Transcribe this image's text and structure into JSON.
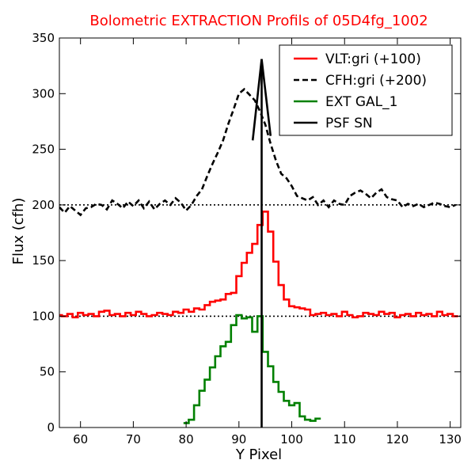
{
  "chart_data": {
    "type": "line",
    "title": "Bolometric EXTRACTION Profils of 05D4fg_1002",
    "title_color": "#ff0000",
    "xlabel": "Y Pixel",
    "ylabel": "Flux (cfh)",
    "xlim": [
      56,
      132
    ],
    "ylim": [
      0,
      350
    ],
    "xticks": [
      60,
      70,
      80,
      90,
      100,
      110,
      120,
      130
    ],
    "yticks": [
      0,
      50,
      100,
      150,
      200,
      250,
      300,
      350
    ],
    "grid": false,
    "legend_position": "top-right",
    "reference_lines": [
      100,
      200
    ],
    "series": [
      {
        "name": "VLT:gri (+100)",
        "color": "#ff0000",
        "style": "steps",
        "x": [
          56,
          57,
          58,
          59,
          60,
          61,
          62,
          63,
          64,
          65,
          66,
          67,
          68,
          69,
          70,
          71,
          72,
          73,
          74,
          75,
          76,
          77,
          78,
          79,
          80,
          81,
          82,
          83,
          84,
          85,
          86,
          87,
          88,
          89,
          90,
          91,
          92,
          93,
          94,
          95,
          96,
          97,
          98,
          99,
          100,
          101,
          102,
          103,
          104,
          105,
          106,
          107,
          108,
          109,
          110,
          111,
          112,
          113,
          114,
          115,
          116,
          117,
          118,
          119,
          120,
          121,
          122,
          123,
          124,
          125,
          126,
          127,
          128,
          129,
          130,
          131
        ],
        "values": [
          101,
          100,
          102,
          99,
          103,
          101,
          102,
          100,
          104,
          105,
          101,
          102,
          100,
          103,
          101,
          104,
          102,
          100,
          101,
          103,
          102,
          101,
          104,
          103,
          106,
          104,
          107,
          106,
          110,
          113,
          114,
          115,
          120,
          121,
          136,
          148,
          157,
          165,
          182,
          194,
          176,
          149,
          128,
          115,
          109,
          108,
          107,
          106,
          101,
          102,
          103,
          101,
          102,
          100,
          104,
          101,
          99,
          100,
          103,
          102,
          101,
          104,
          102,
          103,
          99,
          101,
          102,
          100,
          103,
          101,
          102,
          100,
          104,
          101,
          102,
          100
        ]
      },
      {
        "name": "CFH:gri (+200)",
        "color": "#000000",
        "style": "dashed",
        "x": [
          56,
          57,
          58,
          59,
          60,
          61,
          62,
          63,
          64,
          65,
          66,
          67,
          68,
          69,
          70,
          71,
          72,
          73,
          74,
          75,
          76,
          77,
          78,
          79,
          80,
          81,
          82,
          83,
          84,
          85,
          86,
          87,
          88,
          89,
          90,
          91,
          92,
          93,
          94,
          95,
          96,
          97,
          98,
          99,
          100,
          101,
          102,
          103,
          104,
          105,
          106,
          107,
          108,
          109,
          110,
          111,
          112,
          113,
          114,
          115,
          116,
          117,
          118,
          119,
          120,
          121,
          122,
          123,
          124,
          125,
          126,
          127,
          128,
          129,
          130,
          131
        ],
        "values": [
          198,
          193,
          199,
          195,
          191,
          197,
          198,
          201,
          200,
          196,
          204,
          201,
          197,
          203,
          199,
          204,
          197,
          203,
          196,
          201,
          204,
          200,
          206,
          202,
          195,
          200,
          208,
          214,
          226,
          237,
          247,
          258,
          273,
          286,
          300,
          304,
          299,
          294,
          284,
          272,
          255,
          240,
          228,
          224,
          217,
          208,
          206,
          204,
          207,
          200,
          204,
          198,
          204,
          201,
          200,
          208,
          211,
          213,
          210,
          206,
          211,
          214,
          207,
          205,
          204,
          198,
          201,
          199,
          201,
          198,
          200,
          202,
          201,
          199,
          198,
          200
        ]
      },
      {
        "name": "EXT GAL_1",
        "color": "#008000",
        "style": "steps",
        "x": [
          80,
          81,
          82,
          83,
          84,
          85,
          86,
          87,
          88,
          89,
          90,
          91,
          92,
          93,
          94,
          95,
          96,
          97,
          98,
          99,
          100,
          101,
          102,
          103,
          104,
          105
        ],
        "values": [
          4,
          7,
          20,
          33,
          43,
          54,
          64,
          73,
          77,
          92,
          101,
          98,
          99,
          86,
          100,
          68,
          55,
          41,
          32,
          24,
          20,
          22,
          10,
          7,
          6,
          8
        ]
      },
      {
        "name": "PSF SN",
        "color": "#000000",
        "style": "solid",
        "x": [
          92.6,
          94.3,
          96.0
        ],
        "values": [
          258,
          331,
          262
        ],
        "vertical_line_x": 94.3
      }
    ]
  }
}
